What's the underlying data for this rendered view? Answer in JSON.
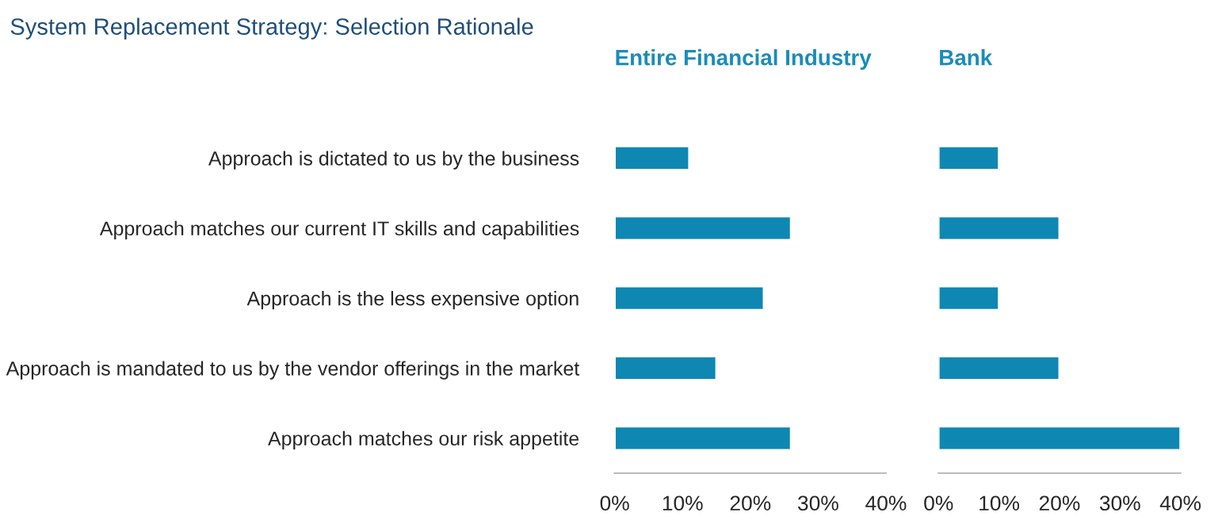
{
  "chart_data": [
    {
      "type": "bar",
      "orientation": "horizontal",
      "title": "System Replacement Strategy: Selection Rationale",
      "subtitle": "Entire Financial Industry",
      "categories": [
        "Approach is dictated to us by the business",
        "Approach matches our current IT skills and capabilities",
        "Approach is the less expensive option",
        "Approach is mandated to us by the vendor offerings in the market",
        "Approach matches our risk appetite"
      ],
      "values": [
        11,
        26,
        22,
        15,
        26
      ],
      "color": "#0e87b2",
      "xlim": [
        0,
        40
      ],
      "xticks": [
        {
          "value": 0,
          "label": "0%"
        },
        {
          "value": 10,
          "label": "10%"
        },
        {
          "value": 20,
          "label": "20%"
        },
        {
          "value": 30,
          "label": "30%"
        },
        {
          "value": 40,
          "label": "40%"
        }
      ]
    },
    {
      "type": "bar",
      "orientation": "horizontal",
      "subtitle": "Bank",
      "categories": [
        null,
        null,
        null,
        null,
        null
      ],
      "values": [
        10,
        20,
        10,
        20,
        40
      ],
      "color": "#0e87b2",
      "tick_labels": "x",
      "xlim": [
        0,
        40
      ],
      "xticks": [
        {
          "value": 0,
          "label": "0%"
        },
        {
          "value": 10,
          "label": "10%"
        },
        {
          "value": 20,
          "label": "20%"
        },
        {
          "value": 30,
          "label": "30%"
        },
        {
          "value": 40,
          "label": "40%"
        }
      ]
    }
  ]
}
